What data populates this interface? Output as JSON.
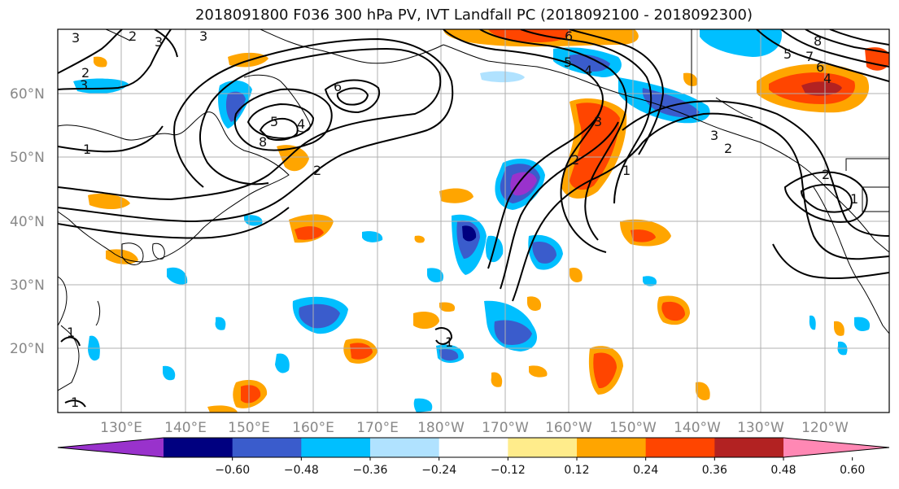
{
  "figure": {
    "title": "2018091800 F036 300 hPa PV, IVT Landfall PC (2018092100 - 2018092300)"
  },
  "map": {
    "lat_ticks": [
      "60°N",
      "50°N",
      "40°N",
      "30°N",
      "20°N"
    ],
    "lon_ticks": [
      "130°E",
      "140°E",
      "150°E",
      "160°E",
      "170°E",
      "180°W",
      "170°W",
      "160°W",
      "150°W",
      "140°W",
      "130°W",
      "120°W"
    ],
    "contour_labels": [
      "3",
      "2",
      "3",
      "3",
      "2",
      "3",
      "1",
      "6",
      "5",
      "4",
      "8",
      "2",
      "6",
      "5",
      "4",
      "3",
      "2",
      "1",
      "1",
      "3",
      "2",
      "5",
      "8",
      "7",
      "6",
      "4",
      "1",
      "1",
      "2",
      "1"
    ]
  },
  "colorbar": {
    "tick_labels": [
      "−0.60",
      "−0.48",
      "−0.36",
      "−0.24",
      "−0.12",
      "0.12",
      "0.24",
      "0.36",
      "0.48",
      "0.60"
    ],
    "colors": [
      "#9932cc",
      "#000080",
      "#3a5ccc",
      "#00bfff",
      "#b0e2ff",
      "#ffffff",
      "#ffec8b",
      "#ffa500",
      "#ff4500",
      "#b22222",
      "#ff88b4"
    ]
  }
}
